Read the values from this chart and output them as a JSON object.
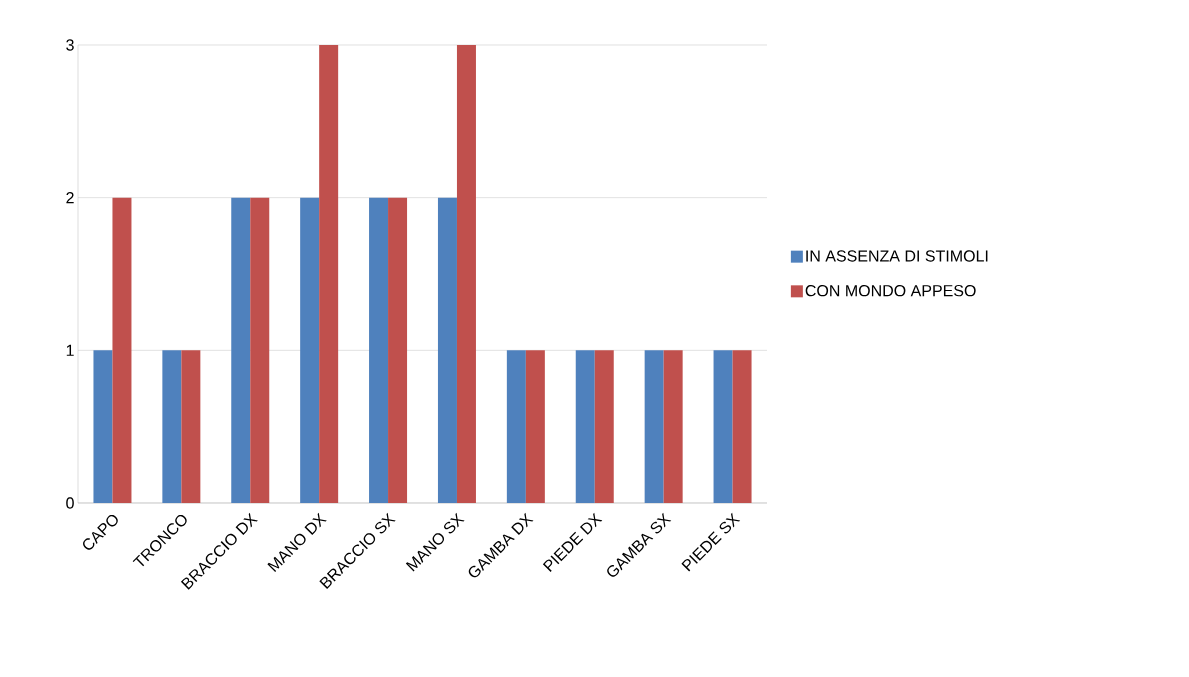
{
  "chart_data": {
    "type": "bar",
    "categories": [
      "CAPO",
      "TRONCO",
      "BRACCIO DX",
      "MANO DX",
      "BRACCIO SX",
      "MANO SX",
      "GAMBA DX",
      "PIEDE DX",
      "GAMBA SX",
      "PIEDE SX"
    ],
    "series": [
      {
        "name": "IN ASSENZA DI STIMOLI",
        "color": "#4f81bd",
        "values": [
          1,
          1,
          2,
          2,
          2,
          2,
          1,
          1,
          1,
          1
        ]
      },
      {
        "name": "CON MONDO APPESO",
        "color": "#c0504d",
        "values": [
          2,
          1,
          2,
          3,
          2,
          3,
          1,
          1,
          1,
          1
        ]
      }
    ],
    "ylim": [
      0,
      3
    ],
    "yticks": [
      0,
      1,
      2,
      3
    ],
    "grid": "y",
    "legend": "right"
  }
}
